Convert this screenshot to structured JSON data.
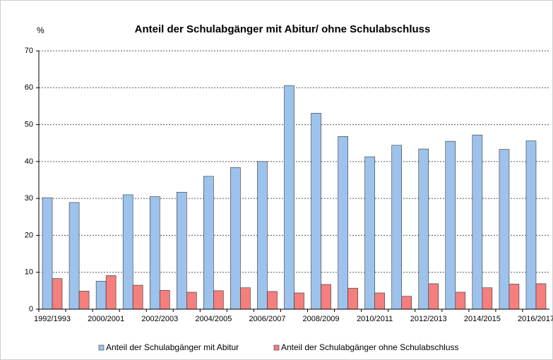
{
  "chart_data": {
    "type": "bar",
    "title": "Anteil der Schulabgänger mit Abitur/ ohne Schulabschluss",
    "y_label": "%",
    "categories": [
      "1992/1993",
      null,
      "2000/2001",
      null,
      "2002/2003",
      null,
      "2004/2005",
      null,
      "2006/2007",
      null,
      "2008/2009",
      null,
      "2010/2011",
      null,
      "2012/2013",
      null,
      "2014/2015",
      null,
      "2016/2017"
    ],
    "series": [
      {
        "name": "Anteil der Schulabgänger mit Abitur",
        "color": "#9dc3ec",
        "values": [
          30.2,
          28.9,
          7.6,
          31.0,
          30.5,
          31.7,
          36.0,
          38.4,
          40.0,
          60.6,
          53.1,
          46.8,
          41.3,
          44.4,
          43.4,
          45.5,
          47.2,
          43.3,
          45.6
        ]
      },
      {
        "name": "Anteil der Schulabgänger ohne Schulabschluss",
        "color": "#f47f7c",
        "values": [
          8.3,
          4.9,
          9.1,
          6.5,
          5.1,
          4.6,
          5.0,
          5.8,
          4.8,
          4.4,
          6.7,
          5.7,
          4.4,
          3.5,
          6.9,
          4.6,
          5.8,
          6.8,
          6.9
        ]
      }
    ],
    "ylim": [
      0,
      70
    ],
    "yticks": [
      0,
      10,
      20,
      30,
      40,
      50,
      60,
      70
    ],
    "grid": true,
    "legend": "bottom"
  }
}
